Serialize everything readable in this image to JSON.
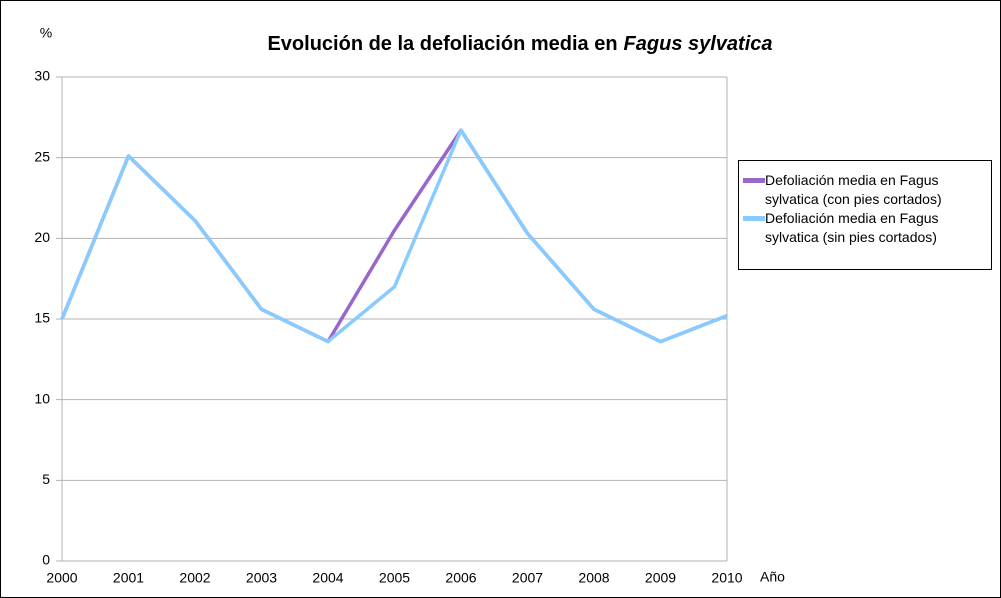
{
  "chart_data": {
    "type": "line",
    "title": [
      "Evolución de la defoliación media en",
      "Fagus sylvatica"
    ],
    "ylabel": "%",
    "xlabel": "Año",
    "categories": [
      "2000",
      "2001",
      "2002",
      "2003",
      "2004",
      "2005",
      "2006",
      "2007",
      "2008",
      "2009",
      "2010"
    ],
    "series": [
      {
        "name": "Defoliación media en Fagus sylvatica (con pies cortados)",
        "color": "#9966cc",
        "values": [
          15,
          25.1,
          21.1,
          15.6,
          13.6,
          20.5,
          26.7,
          20.3,
          15.6,
          13.6,
          15.2
        ]
      },
      {
        "name": "Defoliación media en Fagus sylvatica (sin pies cortados)",
        "color": "#88ccff",
        "values": [
          15,
          25.1,
          21.1,
          15.6,
          13.6,
          17.0,
          26.7,
          20.3,
          15.6,
          13.6,
          15.2
        ]
      }
    ],
    "ylim": [
      0,
      30
    ],
    "yticks": [
      0,
      5,
      10,
      15,
      20,
      25,
      30
    ],
    "grid": true,
    "legend": "right"
  }
}
